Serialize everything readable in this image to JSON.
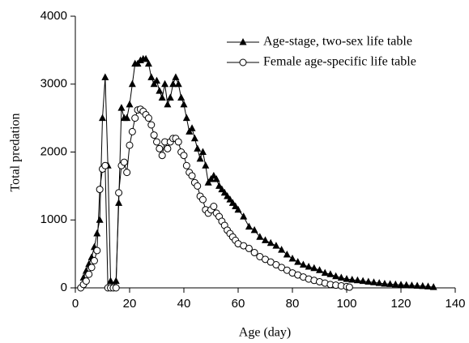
{
  "chart_data": {
    "type": "line",
    "x_label": "Age (day)",
    "y_label": "Total predation",
    "xlim": [
      0,
      140
    ],
    "xticks": [
      0,
      20,
      40,
      60,
      80,
      100,
      120,
      140
    ],
    "ylim": [
      0,
      4000
    ],
    "yticks": [
      0,
      1000,
      2000,
      3000,
      4000
    ],
    "legend": "upper right",
    "series": [
      {
        "name": "Age-stage, two-sex life table",
        "color": "#000000",
        "marker": "triangle",
        "x": [
          3,
          4,
          5,
          6,
          7,
          8,
          9,
          10,
          11,
          12,
          13,
          14,
          15,
          16,
          17,
          18,
          19,
          20,
          21,
          22,
          23,
          24,
          25,
          26,
          27,
          28,
          29,
          30,
          31,
          32,
          33,
          34,
          35,
          36,
          37,
          38,
          39,
          40,
          41,
          42,
          43,
          44,
          45,
          46,
          47,
          48,
          49,
          50,
          51,
          52,
          53,
          54,
          55,
          56,
          57,
          58,
          59,
          60,
          62,
          64,
          66,
          68,
          70,
          72,
          74,
          76,
          78,
          80,
          82,
          84,
          86,
          88,
          90,
          92,
          94,
          96,
          98,
          100,
          102,
          104,
          106,
          108,
          110,
          112,
          114,
          116,
          118,
          120,
          122,
          124,
          126,
          128,
          130,
          132
        ],
        "values": [
          150,
          250,
          350,
          450,
          600,
          800,
          1000,
          2500,
          3100,
          1800,
          100,
          0,
          100,
          1250,
          2650,
          2500,
          2500,
          2700,
          3000,
          3300,
          3300,
          3350,
          3370,
          3370,
          3300,
          3100,
          3000,
          3050,
          2900,
          2800,
          3000,
          2700,
          2800,
          3000,
          3100,
          3000,
          2800,
          2700,
          2500,
          2300,
          2350,
          2200,
          2050,
          1900,
          2000,
          1800,
          1550,
          1600,
          1650,
          1600,
          1500,
          1450,
          1400,
          1350,
          1300,
          1250,
          1200,
          1150,
          1050,
          900,
          850,
          750,
          700,
          660,
          620,
          560,
          490,
          430,
          380,
          340,
          310,
          290,
          260,
          220,
          200,
          170,
          150,
          130,
          120,
          110,
          100,
          90,
          80,
          70,
          60,
          55,
          50,
          45,
          40,
          35,
          30,
          25,
          20,
          10
        ]
      },
      {
        "name": "Female age-specific life table",
        "color": "#000000",
        "marker": "circle",
        "x": [
          2,
          3,
          4,
          5,
          6,
          7,
          8,
          9,
          10,
          11,
          12,
          13,
          14,
          15,
          16,
          17,
          18,
          19,
          20,
          21,
          22,
          23,
          24,
          25,
          26,
          27,
          28,
          29,
          30,
          31,
          32,
          33,
          34,
          35,
          36,
          37,
          38,
          39,
          40,
          41,
          42,
          43,
          44,
          45,
          46,
          47,
          48,
          49,
          50,
          51,
          52,
          53,
          54,
          55,
          56,
          57,
          58,
          59,
          60,
          62,
          64,
          66,
          68,
          70,
          72,
          74,
          76,
          78,
          80,
          82,
          84,
          86,
          88,
          90,
          92,
          94,
          96,
          98,
          100,
          101
        ],
        "values": [
          0,
          50,
          100,
          200,
          300,
          400,
          550,
          1450,
          1750,
          1800,
          0,
          0,
          0,
          0,
          1400,
          1800,
          1850,
          1700,
          2100,
          2300,
          2500,
          2620,
          2630,
          2600,
          2550,
          2500,
          2400,
          2250,
          2150,
          2050,
          1950,
          2150,
          2050,
          2150,
          2200,
          2200,
          2150,
          2000,
          1950,
          1800,
          1700,
          1650,
          1550,
          1500,
          1350,
          1300,
          1150,
          1100,
          1150,
          1200,
          1100,
          1050,
          980,
          920,
          850,
          800,
          750,
          700,
          650,
          620,
          580,
          520,
          460,
          420,
          380,
          340,
          300,
          260,
          220,
          190,
          160,
          130,
          110,
          90,
          70,
          50,
          40,
          30,
          20,
          10
        ]
      }
    ]
  }
}
